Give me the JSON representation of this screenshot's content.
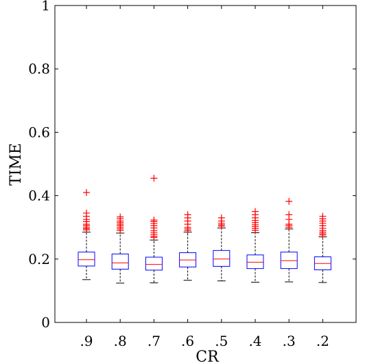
{
  "chart_data": {
    "type": "box",
    "xlabel": "CR",
    "ylabel": "TIME",
    "ylim": [
      0,
      1
    ],
    "yticks": [
      "0",
      "0.2",
      "0.4",
      "0.6",
      "0.8",
      "1"
    ],
    "ytick_values": [
      0,
      0.2,
      0.4,
      0.6,
      0.8,
      1
    ],
    "categories": [
      ".9",
      ".8",
      ".7",
      ".6",
      ".5",
      ".4",
      ".3",
      ".2"
    ],
    "grid": false,
    "colors": {
      "box": "#0000ff",
      "median": "#ff0000",
      "whisker": "#000000",
      "outlier": "#ff0000"
    },
    "boxes": [
      {
        "q1": 0.178,
        "median": 0.198,
        "q3": 0.222,
        "whisker_low": 0.135,
        "whisker_high": 0.285,
        "outliers": [
          0.292,
          0.296,
          0.3,
          0.305,
          0.31,
          0.318,
          0.325,
          0.335,
          0.345,
          0.41
        ]
      },
      {
        "q1": 0.168,
        "median": 0.188,
        "q3": 0.216,
        "whisker_low": 0.124,
        "whisker_high": 0.282,
        "outliers": [
          0.29,
          0.295,
          0.3,
          0.305,
          0.31,
          0.315,
          0.32,
          0.327,
          0.333
        ]
      },
      {
        "q1": 0.165,
        "median": 0.183,
        "q3": 0.206,
        "whisker_low": 0.125,
        "whisker_high": 0.26,
        "outliers": [
          0.268,
          0.272,
          0.278,
          0.284,
          0.29,
          0.298,
          0.305,
          0.312,
          0.318,
          0.323,
          0.455
        ]
      },
      {
        "q1": 0.175,
        "median": 0.197,
        "q3": 0.22,
        "whisker_low": 0.133,
        "whisker_high": 0.285,
        "outliers": [
          0.29,
          0.295,
          0.3,
          0.31,
          0.32,
          0.33,
          0.34
        ]
      },
      {
        "q1": 0.177,
        "median": 0.2,
        "q3": 0.227,
        "whisker_low": 0.131,
        "whisker_high": 0.298,
        "outliers": [
          0.304,
          0.308,
          0.313,
          0.32,
          0.33
        ]
      },
      {
        "q1": 0.17,
        "median": 0.19,
        "q3": 0.213,
        "whisker_low": 0.127,
        "whisker_high": 0.283,
        "outliers": [
          0.29,
          0.296,
          0.302,
          0.308,
          0.315,
          0.322,
          0.33,
          0.34,
          0.35
        ]
      },
      {
        "q1": 0.17,
        "median": 0.195,
        "q3": 0.222,
        "whisker_low": 0.128,
        "whisker_high": 0.295,
        "outliers": [
          0.3,
          0.305,
          0.31,
          0.325,
          0.34,
          0.382
        ]
      },
      {
        "q1": 0.166,
        "median": 0.186,
        "q3": 0.207,
        "whisker_low": 0.126,
        "whisker_high": 0.27,
        "outliers": [
          0.276,
          0.28,
          0.285,
          0.29,
          0.297,
          0.305,
          0.313,
          0.32,
          0.327,
          0.335
        ]
      }
    ]
  }
}
